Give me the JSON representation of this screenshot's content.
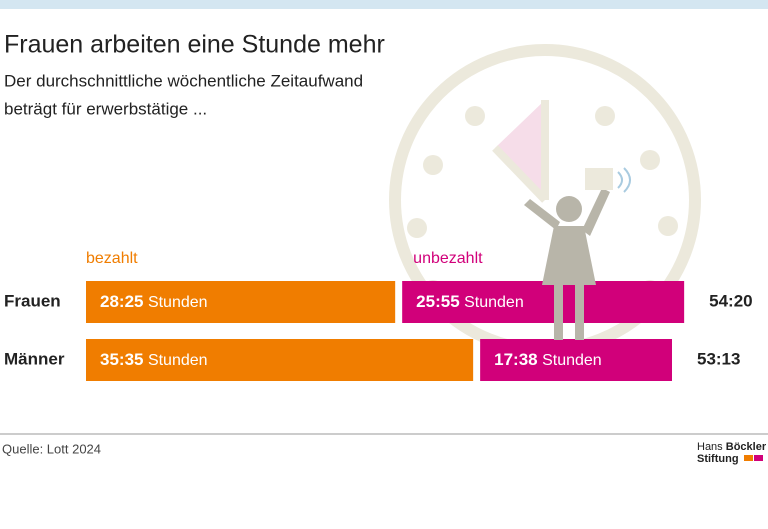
{
  "chart_data": {
    "type": "stacked-bar-horizontal",
    "title": "Frauen arbeiten eine Stunde mehr",
    "subtitle": [
      "Der durchschnittliche wöchentliche Zeitaufwand",
      "beträgt für erwerbstätige ..."
    ],
    "categories": [
      "Frauen",
      "Männer"
    ],
    "series": [
      {
        "name": "bezahlt",
        "color": "#f07d00",
        "values": [
          28.4167,
          35.5833
        ],
        "value_labels": [
          "28:25",
          "35:35"
        ]
      },
      {
        "name": "unbezahlt",
        "color": "#d1007a",
        "values": [
          25.9167,
          17.6333
        ],
        "value_labels": [
          "25:55",
          "17:38"
        ]
      }
    ],
    "value_unit": "Stunden",
    "totals": [
      54.3333,
      53.2167
    ],
    "total_labels": [
      "54:20",
      "53:13"
    ],
    "source": "Quelle: Lott 2024",
    "logo": [
      "Hans",
      "Böckler",
      "Stiftung"
    ]
  }
}
